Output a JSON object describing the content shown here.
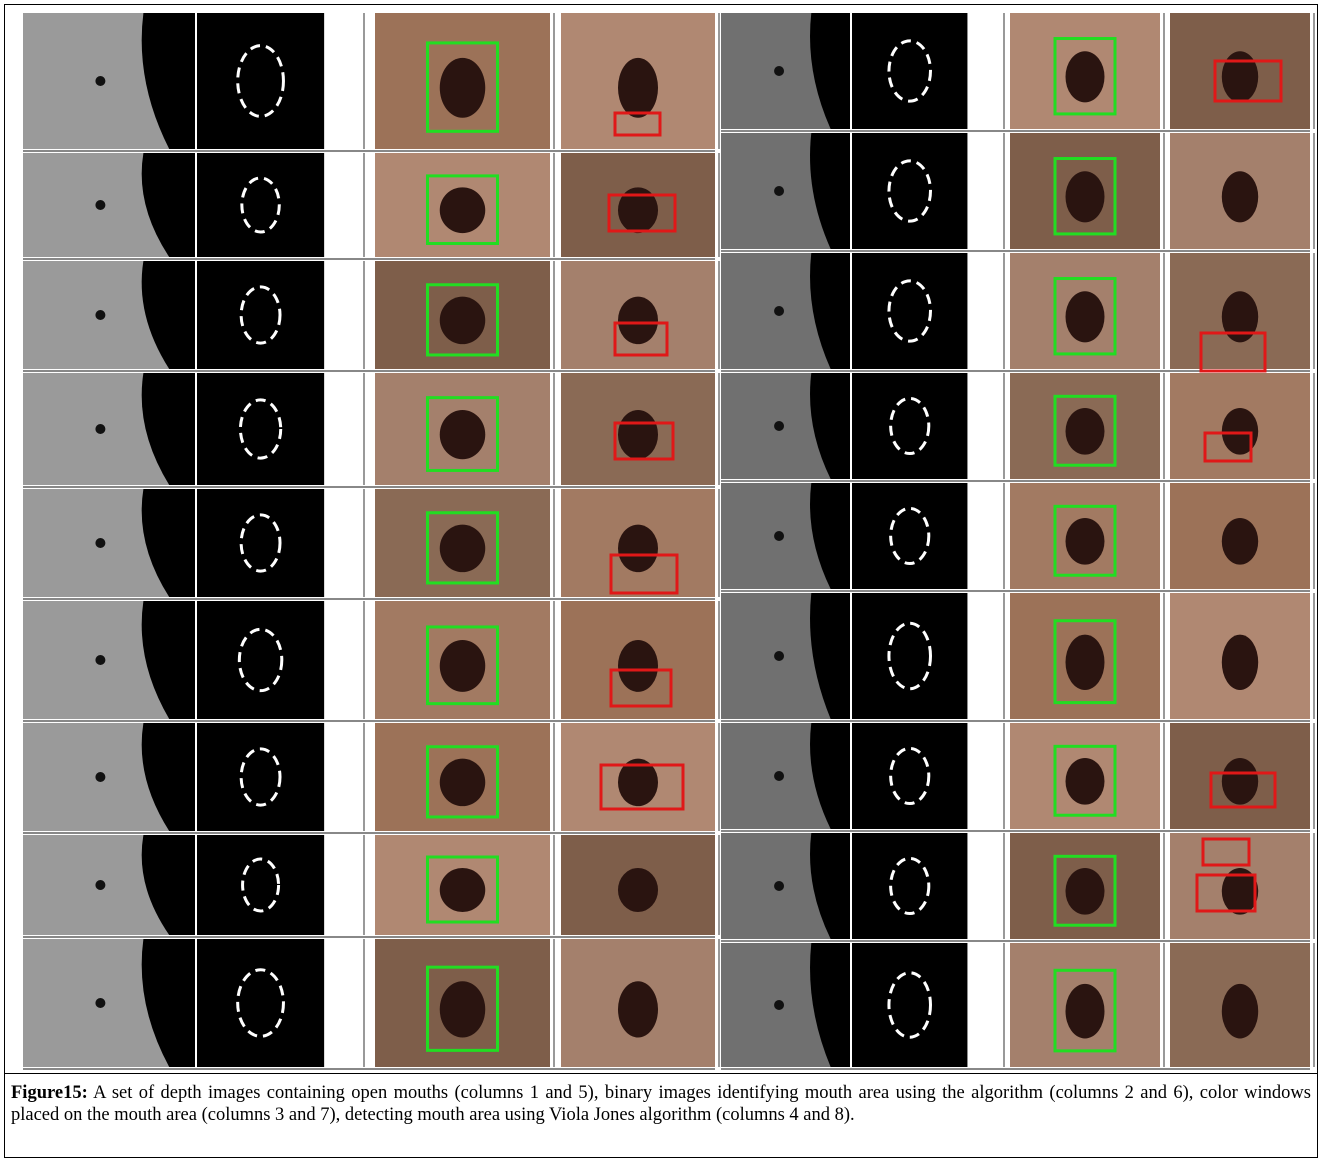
{
  "figure": {
    "caption": {
      "label": "Figure15:",
      "text": "A set of depth images containing open mouths (columns 1 and 5), binary images identifying mouth area using the algorithm (columns 2 and 6), color windows placed on the mouth area (columns 3 and 7), detecting mouth area using Viola Jones algorithm (columns 4 and 8)."
    }
  }
}
